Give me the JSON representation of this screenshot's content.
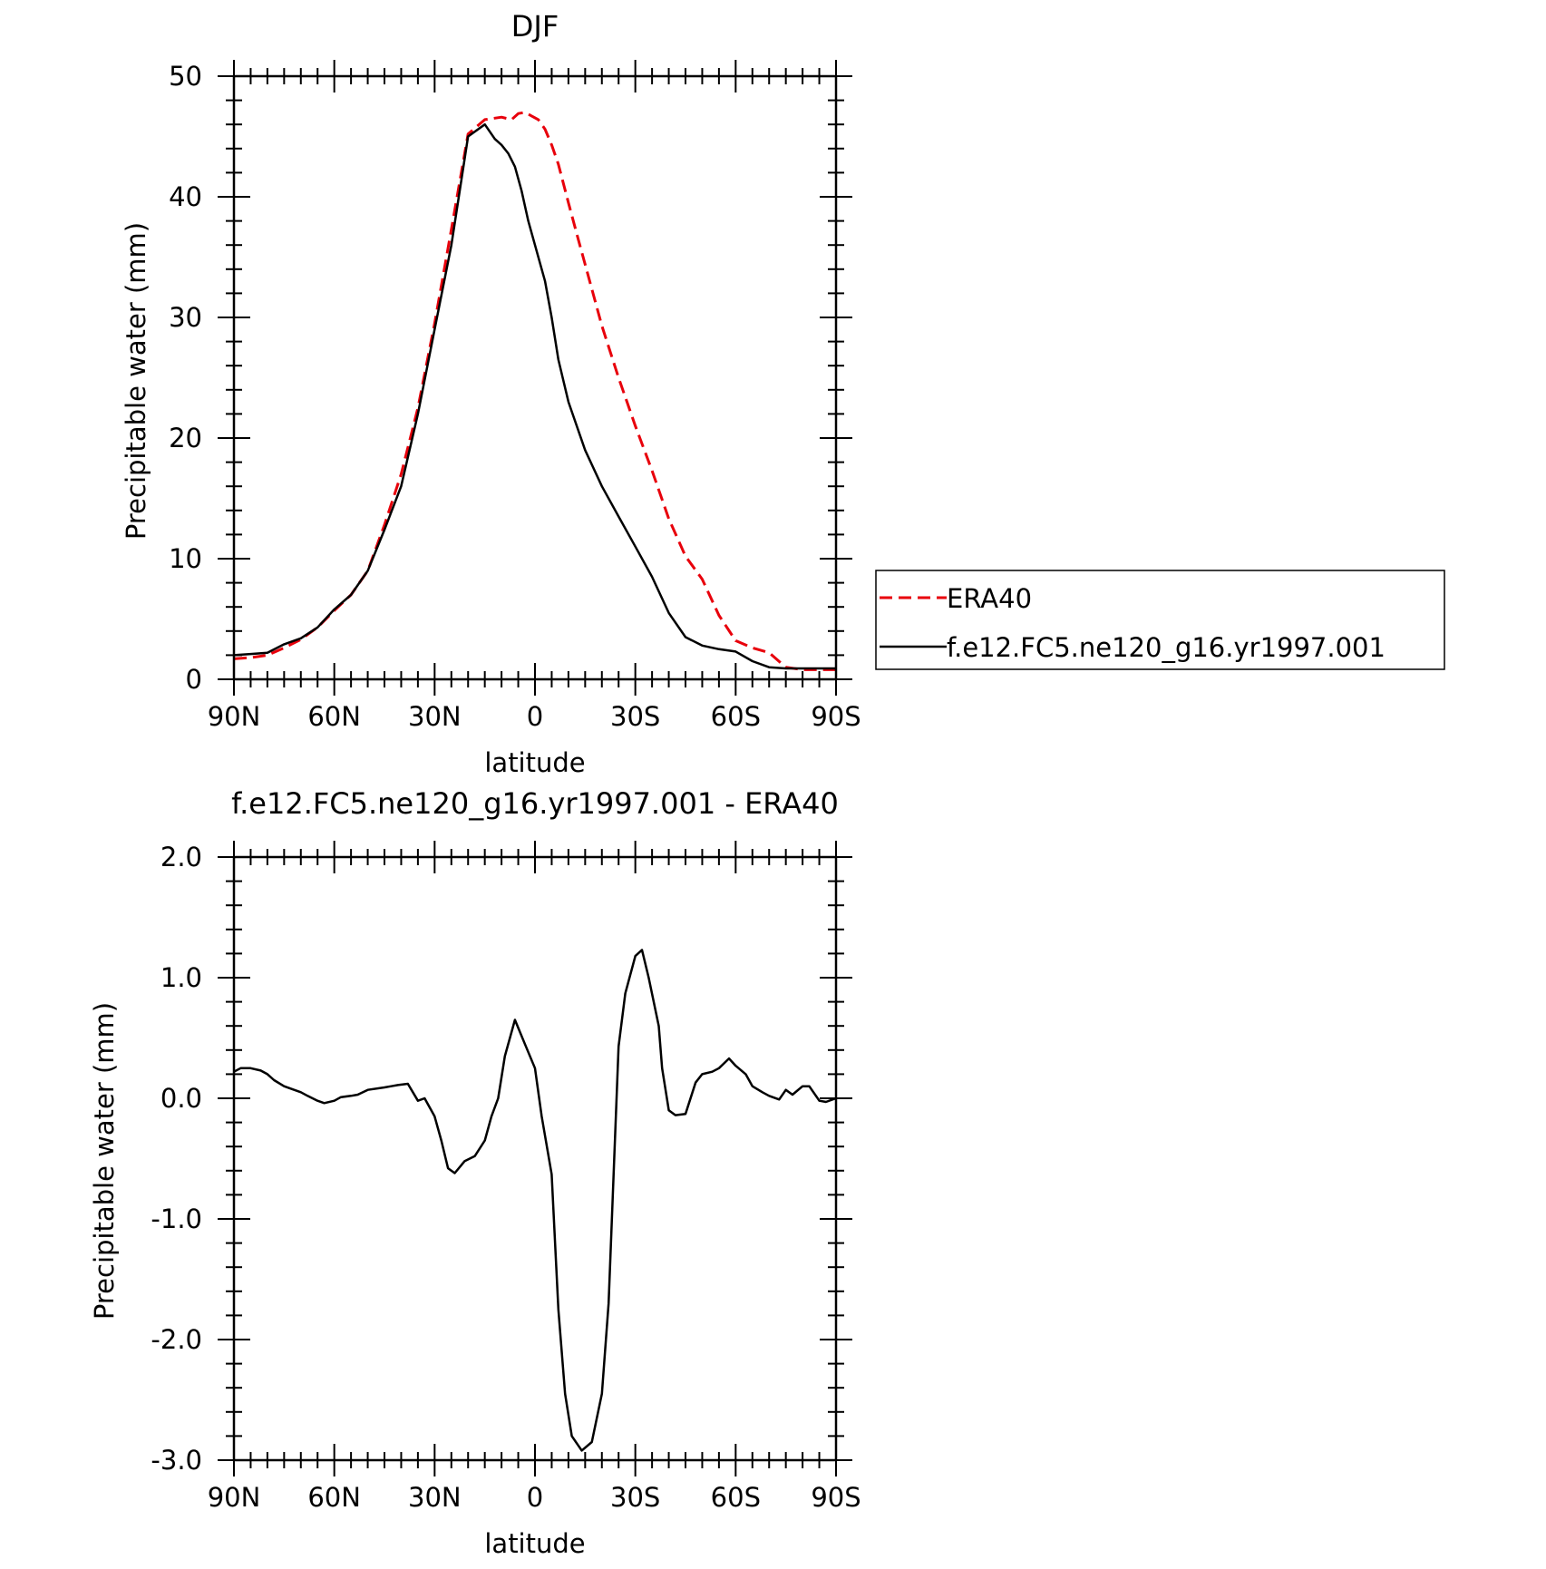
{
  "figure": {
    "background": "#ffffff"
  },
  "chart_data": [
    {
      "type": "line",
      "title": "DJF",
      "xlabel": "latitude",
      "ylabel": "Precipitable water (mm)",
      "xlim": [
        90,
        -90
      ],
      "ylim": [
        0,
        50
      ],
      "x_ticks": [
        {
          "value": 90,
          "label": "90N"
        },
        {
          "value": 60,
          "label": "60N"
        },
        {
          "value": 30,
          "label": "30N"
        },
        {
          "value": 0,
          "label": "0"
        },
        {
          "value": -30,
          "label": "30S"
        },
        {
          "value": -60,
          "label": "60S"
        },
        {
          "value": -90,
          "label": "90S"
        }
      ],
      "y_ticks": [
        {
          "value": 0,
          "label": "0"
        },
        {
          "value": 10,
          "label": "10"
        },
        {
          "value": 20,
          "label": "20"
        },
        {
          "value": 30,
          "label": "30"
        },
        {
          "value": 40,
          "label": "40"
        },
        {
          "value": 50,
          "label": "50"
        }
      ],
      "grid": false,
      "legend": {
        "placement": "right"
      },
      "series": [
        {
          "name": "ERA40",
          "color": "#e8000b",
          "dash": true,
          "x": [
            90,
            85,
            80,
            75,
            70,
            65,
            60,
            55,
            50,
            45,
            40,
            35,
            30,
            25,
            20,
            15,
            10,
            7,
            5,
            3,
            1,
            -1,
            -3,
            -5,
            -7,
            -10,
            -13,
            -15,
            -20,
            -25,
            -30,
            -35,
            -40,
            -45,
            -50,
            -55,
            -60,
            -65,
            -70,
            -75,
            -80,
            -85,
            -90
          ],
          "values": [
            1.7,
            1.8,
            2.0,
            2.6,
            3.3,
            4.3,
            5.7,
            7.0,
            9.0,
            12.8,
            17.0,
            22.5,
            29.5,
            37.3,
            45.2,
            46.4,
            46.6,
            46.4,
            46.9,
            47.0,
            46.7,
            46.4,
            45.6,
            44.3,
            42.7,
            39.5,
            36.4,
            34.4,
            29.3,
            25.0,
            21.0,
            17.3,
            13.3,
            10.2,
            8.3,
            5.3,
            3.2,
            2.6,
            2.2,
            1.0,
            0.8,
            0.8,
            0.8
          ]
        },
        {
          "name": "f.e12.FC5.ne120_g16.yr1997.001",
          "color": "#000000",
          "dash": false,
          "x": [
            90,
            85,
            80,
            75,
            70,
            65,
            60,
            55,
            50,
            45,
            40,
            35,
            30,
            25,
            20,
            15,
            12,
            10,
            8,
            6,
            4,
            2,
            0,
            -3,
            -5,
            -7,
            -10,
            -15,
            -20,
            -25,
            -30,
            -35,
            -40,
            -45,
            -50,
            -55,
            -60,
            -65,
            -70,
            -75,
            -80,
            -85,
            -90
          ],
          "values": [
            2.0,
            2.1,
            2.2,
            2.9,
            3.4,
            4.3,
            5.8,
            7.0,
            9.0,
            12.4,
            16.0,
            22.0,
            29.0,
            36.0,
            45.0,
            46.0,
            44.8,
            44.3,
            43.6,
            42.5,
            40.5,
            38.0,
            36.0,
            33.0,
            30.0,
            26.5,
            23.0,
            19.0,
            16.0,
            13.5,
            11.0,
            8.5,
            5.5,
            3.5,
            2.8,
            2.5,
            2.3,
            1.5,
            1.0,
            0.9,
            0.9,
            0.9,
            0.9
          ]
        }
      ]
    },
    {
      "type": "line",
      "title": "f.e12.FC5.ne120_g16.yr1997.001 - ERA40",
      "xlabel": "latitude",
      "ylabel": "Precipitable water (mm)",
      "xlim": [
        90,
        -90
      ],
      "ylim": [
        -3.0,
        2.0
      ],
      "x_ticks": [
        {
          "value": 90,
          "label": "90N"
        },
        {
          "value": 60,
          "label": "60N"
        },
        {
          "value": 30,
          "label": "30N"
        },
        {
          "value": 0,
          "label": "0"
        },
        {
          "value": -30,
          "label": "30S"
        },
        {
          "value": -60,
          "label": "60S"
        },
        {
          "value": -90,
          "label": "90S"
        }
      ],
      "y_ticks": [
        {
          "value": -3.0,
          "label": "-3.0"
        },
        {
          "value": -2.0,
          "label": "-2.0"
        },
        {
          "value": -1.0,
          "label": "-1.0"
        },
        {
          "value": 0.0,
          "label": "0.0"
        },
        {
          "value": 1.0,
          "label": "1.0"
        },
        {
          "value": 2.0,
          "label": "2.0"
        }
      ],
      "grid": false,
      "series": [
        {
          "color": "#000000",
          "dash": false,
          "x": [
            90,
            88,
            85,
            82,
            80,
            78,
            75,
            72,
            70,
            68,
            65,
            63,
            60,
            58,
            55,
            53,
            50,
            45,
            43,
            41,
            38,
            35,
            33,
            30,
            28,
            26,
            24,
            21,
            18,
            15,
            13,
            11,
            9,
            6,
            3,
            0,
            -2,
            -5,
            -7,
            -9,
            -11,
            -14,
            -17,
            -20,
            -22,
            -25,
            -27,
            -30,
            -32,
            -34,
            -37,
            -38,
            -40,
            -42,
            -45,
            -48,
            -50,
            -53,
            -55,
            -58,
            -60,
            -63,
            -65,
            -68,
            -70,
            -73,
            -75,
            -77,
            -80,
            -82,
            -85,
            -87,
            -90
          ],
          "values": [
            0.22,
            0.25,
            0.25,
            0.23,
            0.2,
            0.15,
            0.1,
            0.07,
            0.05,
            0.02,
            -0.02,
            -0.04,
            -0.02,
            0.01,
            0.02,
            0.03,
            0.07,
            0.09,
            0.1,
            0.11,
            0.12,
            -0.02,
            0.0,
            -0.15,
            -0.35,
            -0.58,
            -0.62,
            -0.52,
            -0.48,
            -0.35,
            -0.15,
            0.0,
            0.35,
            0.65,
            0.45,
            0.25,
            -0.15,
            -0.63,
            -1.75,
            -2.45,
            -2.8,
            -2.92,
            -2.85,
            -2.45,
            -1.7,
            0.43,
            0.87,
            1.18,
            1.23,
            1.0,
            0.6,
            0.25,
            -0.1,
            -0.14,
            -0.13,
            0.13,
            0.2,
            0.22,
            0.25,
            0.33,
            0.27,
            0.2,
            0.1,
            0.05,
            0.02,
            -0.01,
            0.07,
            0.03,
            0.1,
            0.1,
            -0.02,
            -0.03,
            0.0
          ]
        }
      ]
    }
  ]
}
